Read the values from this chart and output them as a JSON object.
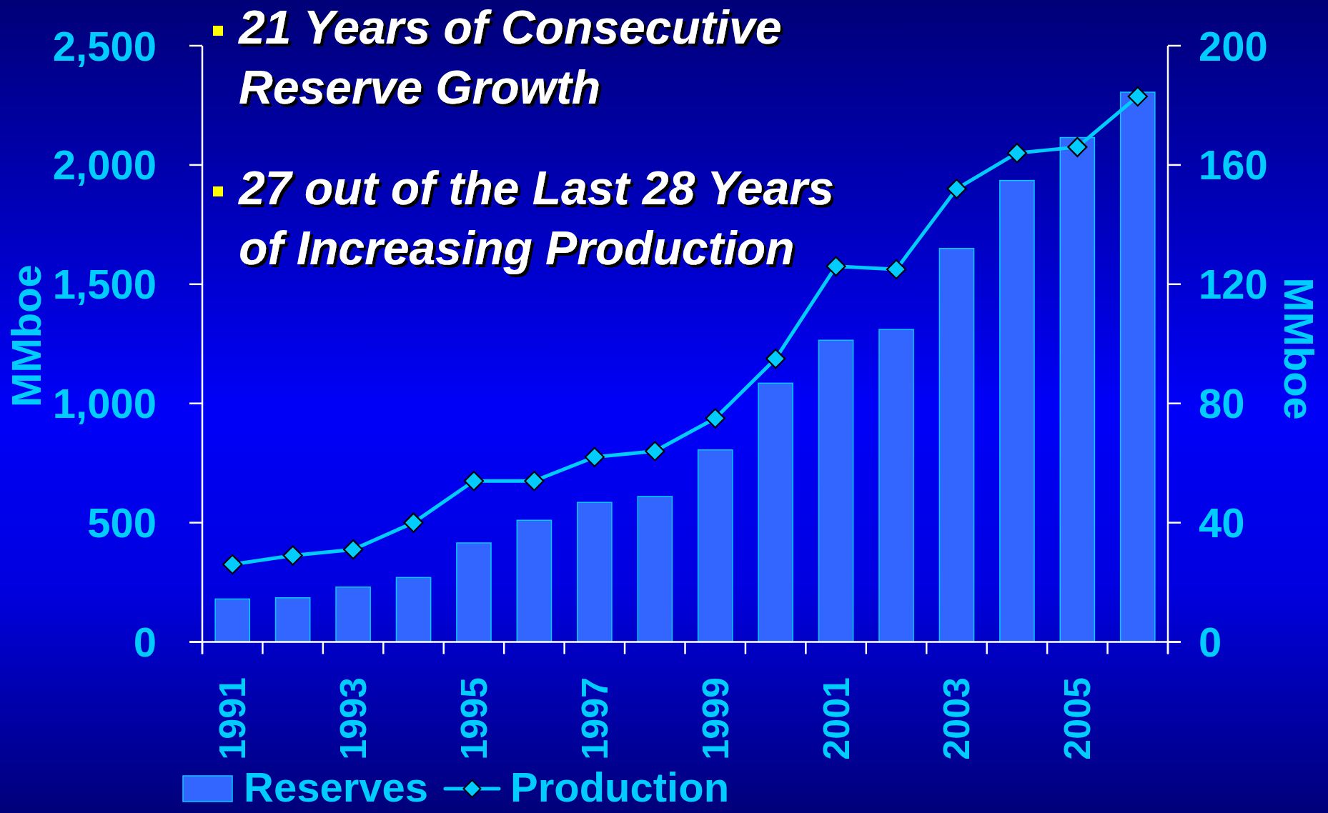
{
  "chart_data": {
    "type": "bar",
    "annotations": [
      "21 Years of Consecutive Reserve Growth",
      "27 out of the Last 28 Years of Increasing Production"
    ],
    "ylabel": "MMboe",
    "y2label": "MMboe",
    "categories": [
      "1991",
      null,
      "1993",
      null,
      "1995",
      null,
      "1997",
      null,
      "1999",
      null,
      "2001",
      null,
      "2003",
      null,
      "2005",
      null
    ],
    "series": [
      {
        "name": "Reserves",
        "color": "#3366ff",
        "values": [
          180,
          185,
          230,
          270,
          415,
          510,
          585,
          610,
          805,
          1085,
          1265,
          1310,
          1650,
          1935,
          2115,
          2305
        ]
      },
      {
        "name": "Production",
        "type": "line",
        "axis": "y2",
        "color": "#00ccff",
        "values": [
          26,
          29,
          31,
          40,
          54,
          54,
          62,
          64,
          75,
          95,
          126,
          125,
          152,
          164,
          166,
          183
        ]
      }
    ],
    "ylim": [
      0,
      2500
    ],
    "yticks": [
      0,
      500,
      {
        "value": 1000,
        "label": "1,000"
      },
      {
        "value": 1500,
        "label": "1,500"
      },
      {
        "value": 2000,
        "label": "2,000"
      },
      {
        "value": 2500,
        "label": "2,500"
      }
    ],
    "y2lim": [
      0,
      200
    ],
    "y2ticks": [
      0,
      40,
      80,
      120,
      160,
      200
    ],
    "marker": "diamond",
    "legend": "bottom"
  }
}
